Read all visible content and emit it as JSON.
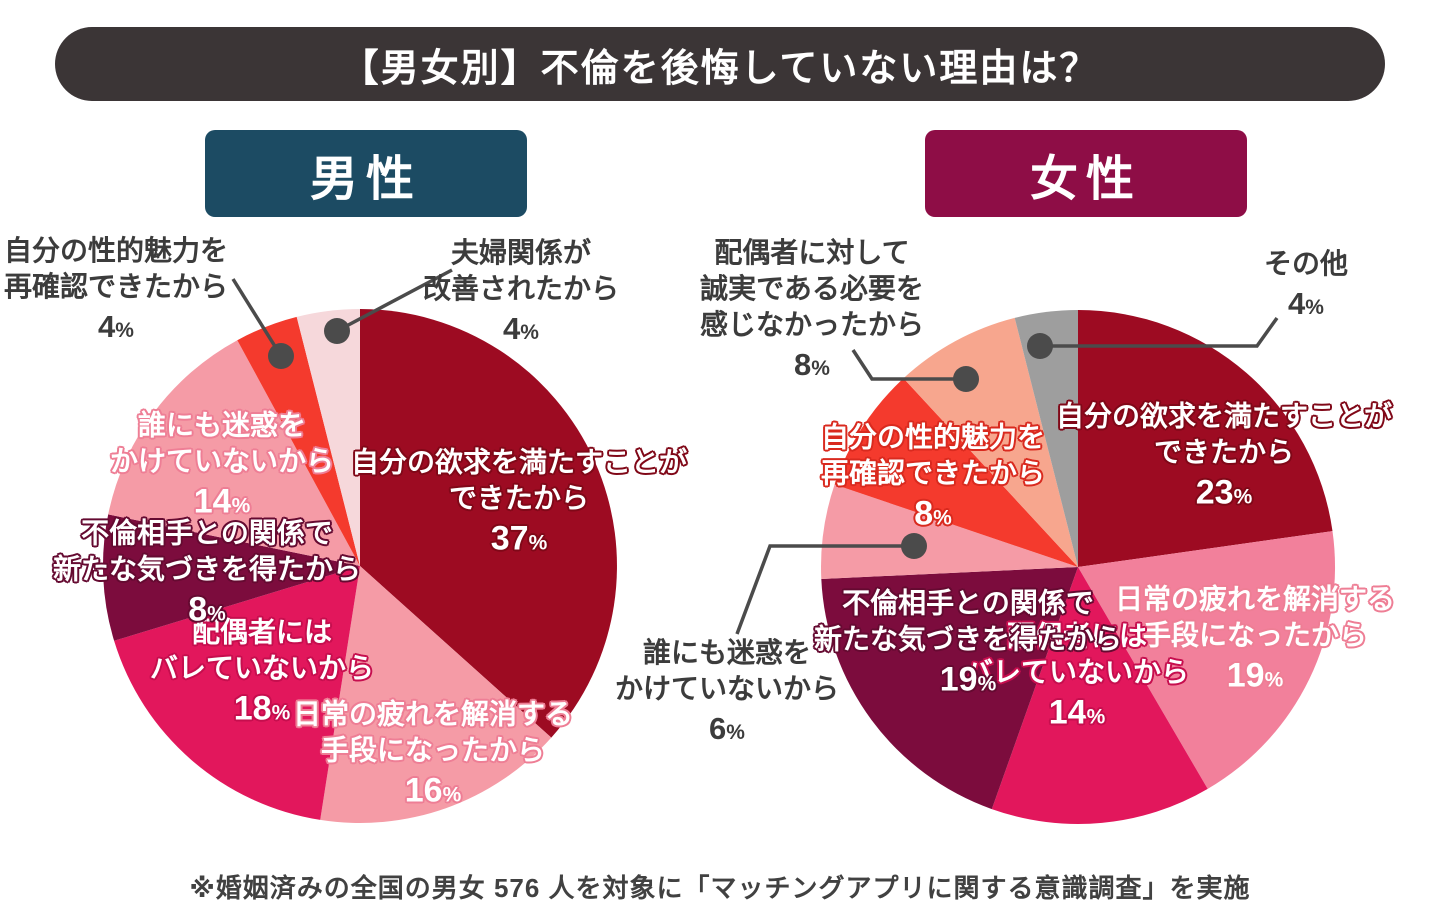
{
  "title": "【男女別】不倫を後悔していない理由は？",
  "footnote": "※婚姻済みの全国の男女 576 人を対象に「マッチングアプリに関する意識調査」を実施",
  "colors": {
    "banner_bg": "#3B3536",
    "banner_text": "#FFFFFF",
    "male_bg": "#1C4B63",
    "female_bg": "#8E0D46",
    "leader_line": "#4B4B4B",
    "outside_label_text": "#3C3C3C",
    "background": "#FFFFFF"
  },
  "chart_data": [
    {
      "type": "pie",
      "group": "男性",
      "start_angle": "12-oclock-clockwise",
      "slices": [
        {
          "label": "自分の欲求を満たすことができたから",
          "label_lines": [
            "自分の欲求を満たすことが",
            "できたから"
          ],
          "value": 37,
          "color": "#9D0B22"
        },
        {
          "label": "日常の疲れを解消する手段になったから",
          "label_lines": [
            "日常の疲れを解消する",
            "手段になったから"
          ],
          "value": 16,
          "color": "#F59BA6"
        },
        {
          "label": "配偶者にはバレていないから",
          "label_lines": [
            "配偶者には",
            "バレていないから"
          ],
          "value": 18,
          "color": "#E2175C"
        },
        {
          "label": "不倫相手との関係で新たな気づきを得たから",
          "label_lines": [
            "不倫相手との関係で",
            "新たな気づきを得たから"
          ],
          "value": 8,
          "color": "#7C0C3D"
        },
        {
          "label": "誰にも迷惑をかけていないから",
          "label_lines": [
            "誰にも迷惑を",
            "かけていないから"
          ],
          "value": 14,
          "color": "#F59BA6"
        },
        {
          "label": "自分の性的魅力を再確認できたから",
          "label_lines": [
            "自分の性的魅力を",
            "再確認できたから"
          ],
          "value": 4,
          "color": "#F43A2D"
        },
        {
          "label": "夫婦関係が改善されたから",
          "label_lines": [
            "夫婦関係が",
            "改善されたから"
          ],
          "value": 4,
          "color": "#F6D8DB"
        }
      ]
    },
    {
      "type": "pie",
      "group": "女性",
      "start_angle": "12-oclock-clockwise",
      "slices": [
        {
          "label": "自分の欲求を満たすことができたから",
          "label_lines": [
            "自分の欲求を満たすことが",
            "できたから"
          ],
          "value": 23,
          "color": "#9D0B22"
        },
        {
          "label": "日常の疲れを解消する手段になったから",
          "label_lines": [
            "日常の疲れを解消する",
            "手段になったから"
          ],
          "value": 19,
          "color": "#F2809B"
        },
        {
          "label": "配偶者にはバレていないから",
          "label_lines": [
            "配偶者には",
            "バレていないから"
          ],
          "value": 14,
          "color": "#E2175C"
        },
        {
          "label": "不倫相手との関係で新たな気づきを得たから",
          "label_lines": [
            "不倫相手との関係で",
            "新たな気づきを得たから"
          ],
          "value": 19,
          "color": "#7C0C3D"
        },
        {
          "label": "誰にも迷惑をかけていないから",
          "label_lines": [
            "誰にも迷惑を",
            "かけていないから"
          ],
          "value": 6,
          "color": "#F59BA6"
        },
        {
          "label": "自分の性的魅力を再確認できたから",
          "label_lines": [
            "自分の性的魅力を",
            "再確認できたから"
          ],
          "value": 8,
          "color": "#F43A2D"
        },
        {
          "label": "配偶者に対して誠実である必要を感じなかったから",
          "label_lines": [
            "配偶者に対して",
            "誠実である必要を",
            "感じなかったから"
          ],
          "value": 8,
          "color": "#F7A68E"
        },
        {
          "label": "その他",
          "label_lines": [
            "その他"
          ],
          "value": 4,
          "color": "#9E9E9E"
        }
      ]
    }
  ]
}
